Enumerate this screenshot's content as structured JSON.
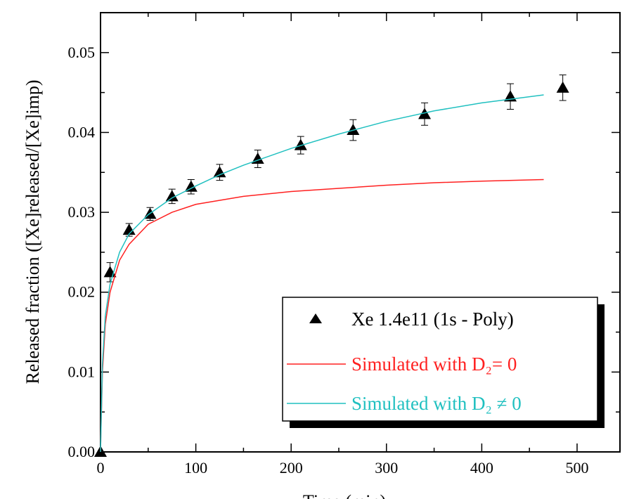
{
  "chart_data": {
    "type": "scatter",
    "xlabel": "Time (min)",
    "ylabel": "Released fraction ([Xe]released/[Xe]imp)",
    "xlim": [
      0,
      545
    ],
    "ylim": [
      0,
      0.055
    ],
    "xticks": [
      0,
      100,
      200,
      300,
      400,
      500
    ],
    "yticks": [
      {
        "value": 0,
        "label": "0.00"
      },
      0.01,
      0.02,
      0.03,
      0.04,
      0.05
    ],
    "legend": "lower right",
    "series": [
      {
        "name": "Xe 1.4e11 (1s - Poly)",
        "color": "#000000",
        "mode": "markers",
        "x": [
          0,
          10,
          30,
          52,
          75,
          95,
          125,
          165,
          210,
          265,
          340,
          430,
          485
        ],
        "values": [
          0,
          0.0225,
          0.0278,
          0.0298,
          0.032,
          0.0332,
          0.035,
          0.0367,
          0.0384,
          0.0403,
          0.0423,
          0.0445,
          0.0456
        ],
        "errors": [
          0,
          0.0012,
          0.0008,
          0.0008,
          0.0009,
          0.0009,
          0.001,
          0.0011,
          0.0011,
          0.0013,
          0.0014,
          0.0016,
          0.0016
        ]
      },
      {
        "name": "Simulated with D₂= 0",
        "color": "#ff2020",
        "mode": "lines",
        "x": [
          0,
          2,
          5,
          10,
          20,
          30,
          50,
          75,
          100,
          150,
          200,
          250,
          300,
          350,
          400,
          465
        ],
        "values": [
          0,
          0.01,
          0.016,
          0.02,
          0.024,
          0.026,
          0.0285,
          0.03,
          0.031,
          0.032,
          0.0326,
          0.033,
          0.0334,
          0.0337,
          0.0339,
          0.0341
        ]
      },
      {
        "name": "Simulated with D₂ ≠ 0",
        "color": "#20c0c0",
        "mode": "lines",
        "x": [
          0,
          2,
          5,
          10,
          20,
          30,
          50,
          75,
          100,
          125,
          150,
          200,
          250,
          300,
          350,
          400,
          465
        ],
        "values": [
          0,
          0.011,
          0.017,
          0.021,
          0.025,
          0.0273,
          0.0297,
          0.0318,
          0.0333,
          0.0347,
          0.0359,
          0.038,
          0.0398,
          0.0414,
          0.0427,
          0.0437,
          0.0447
        ]
      }
    ]
  }
}
